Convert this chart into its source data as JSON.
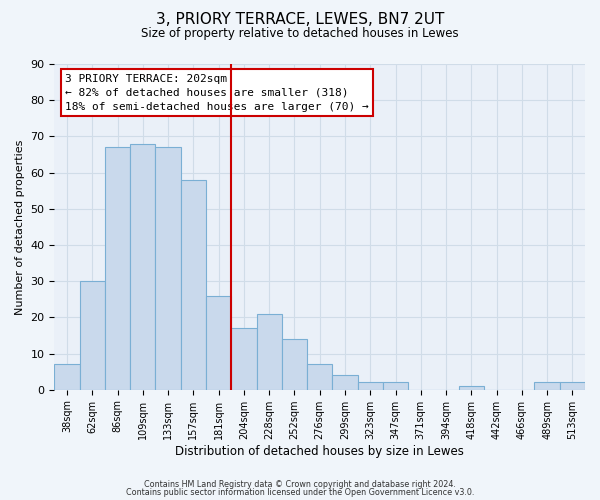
{
  "title": "3, PRIORY TERRACE, LEWES, BN7 2UT",
  "subtitle": "Size of property relative to detached houses in Lewes",
  "xlabel": "Distribution of detached houses by size in Lewes",
  "ylabel": "Number of detached properties",
  "bar_labels": [
    "38sqm",
    "62sqm",
    "86sqm",
    "109sqm",
    "133sqm",
    "157sqm",
    "181sqm",
    "204sqm",
    "228sqm",
    "252sqm",
    "276sqm",
    "299sqm",
    "323sqm",
    "347sqm",
    "371sqm",
    "394sqm",
    "418sqm",
    "442sqm",
    "466sqm",
    "489sqm",
    "513sqm"
  ],
  "bar_values": [
    7,
    30,
    67,
    68,
    67,
    58,
    26,
    17,
    21,
    14,
    7,
    4,
    2,
    2,
    0,
    0,
    1,
    0,
    0,
    2,
    2
  ],
  "bar_color": "#c9d9ec",
  "bar_edge_color": "#7aafd4",
  "vline_color": "#cc0000",
  "vline_index": 7,
  "annotation_lines": [
    "3 PRIORY TERRACE: 202sqm",
    "← 82% of detached houses are smaller (318)",
    "18% of semi-detached houses are larger (70) →"
  ],
  "annotation_box_edge_color": "#cc0000",
  "ylim": [
    0,
    90
  ],
  "yticks": [
    0,
    10,
    20,
    30,
    40,
    50,
    60,
    70,
    80,
    90
  ],
  "grid_color": "#d0dce8",
  "plot_bg_color": "#eaf0f8",
  "fig_bg_color": "#f0f5fa",
  "footnote1": "Contains HM Land Registry data © Crown copyright and database right 2024.",
  "footnote2": "Contains public sector information licensed under the Open Government Licence v3.0."
}
